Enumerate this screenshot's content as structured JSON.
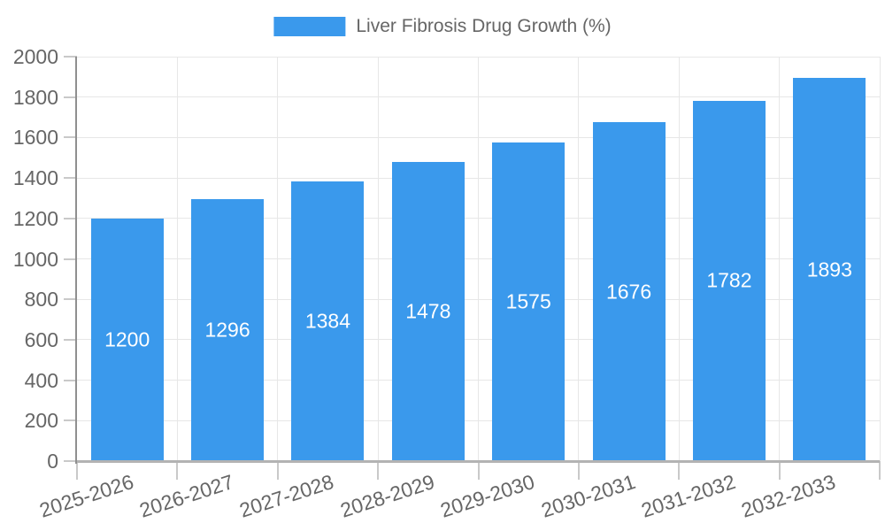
{
  "legend": {
    "label": "Liver Fibrosis Drug Growth (%)"
  },
  "colors": {
    "bar": "#3A99EC",
    "bar_label_text": "#FFFFFF",
    "axis_text": "#666666",
    "gridline": "#E7E7E7",
    "tick": "#C9C9C9",
    "x_axis_line": "#B3B3B3",
    "y_axis_line": "#8F8F8F",
    "background": "#FFFFFF"
  },
  "chart_data": {
    "type": "bar",
    "title": "",
    "categories": [
      "2025-2026",
      "2026-2027",
      "2027-2028",
      "2028-2029",
      "2029-2030",
      "2030-2031",
      "2031-2032",
      "2032-2033"
    ],
    "series": [
      {
        "name": "Liver Fibrosis Drug Growth (%)",
        "color": "#3A99EC",
        "values": [
          1200,
          1296,
          1384,
          1478,
          1575,
          1676,
          1782,
          1893
        ]
      }
    ],
    "xlabel": "",
    "ylabel": "",
    "ylim": [
      0,
      2000
    ],
    "ytick_step": 200,
    "grid": true,
    "legend_position": "top-center",
    "value_label_position": "inside-center",
    "x_tick_rotation_deg": -18
  }
}
